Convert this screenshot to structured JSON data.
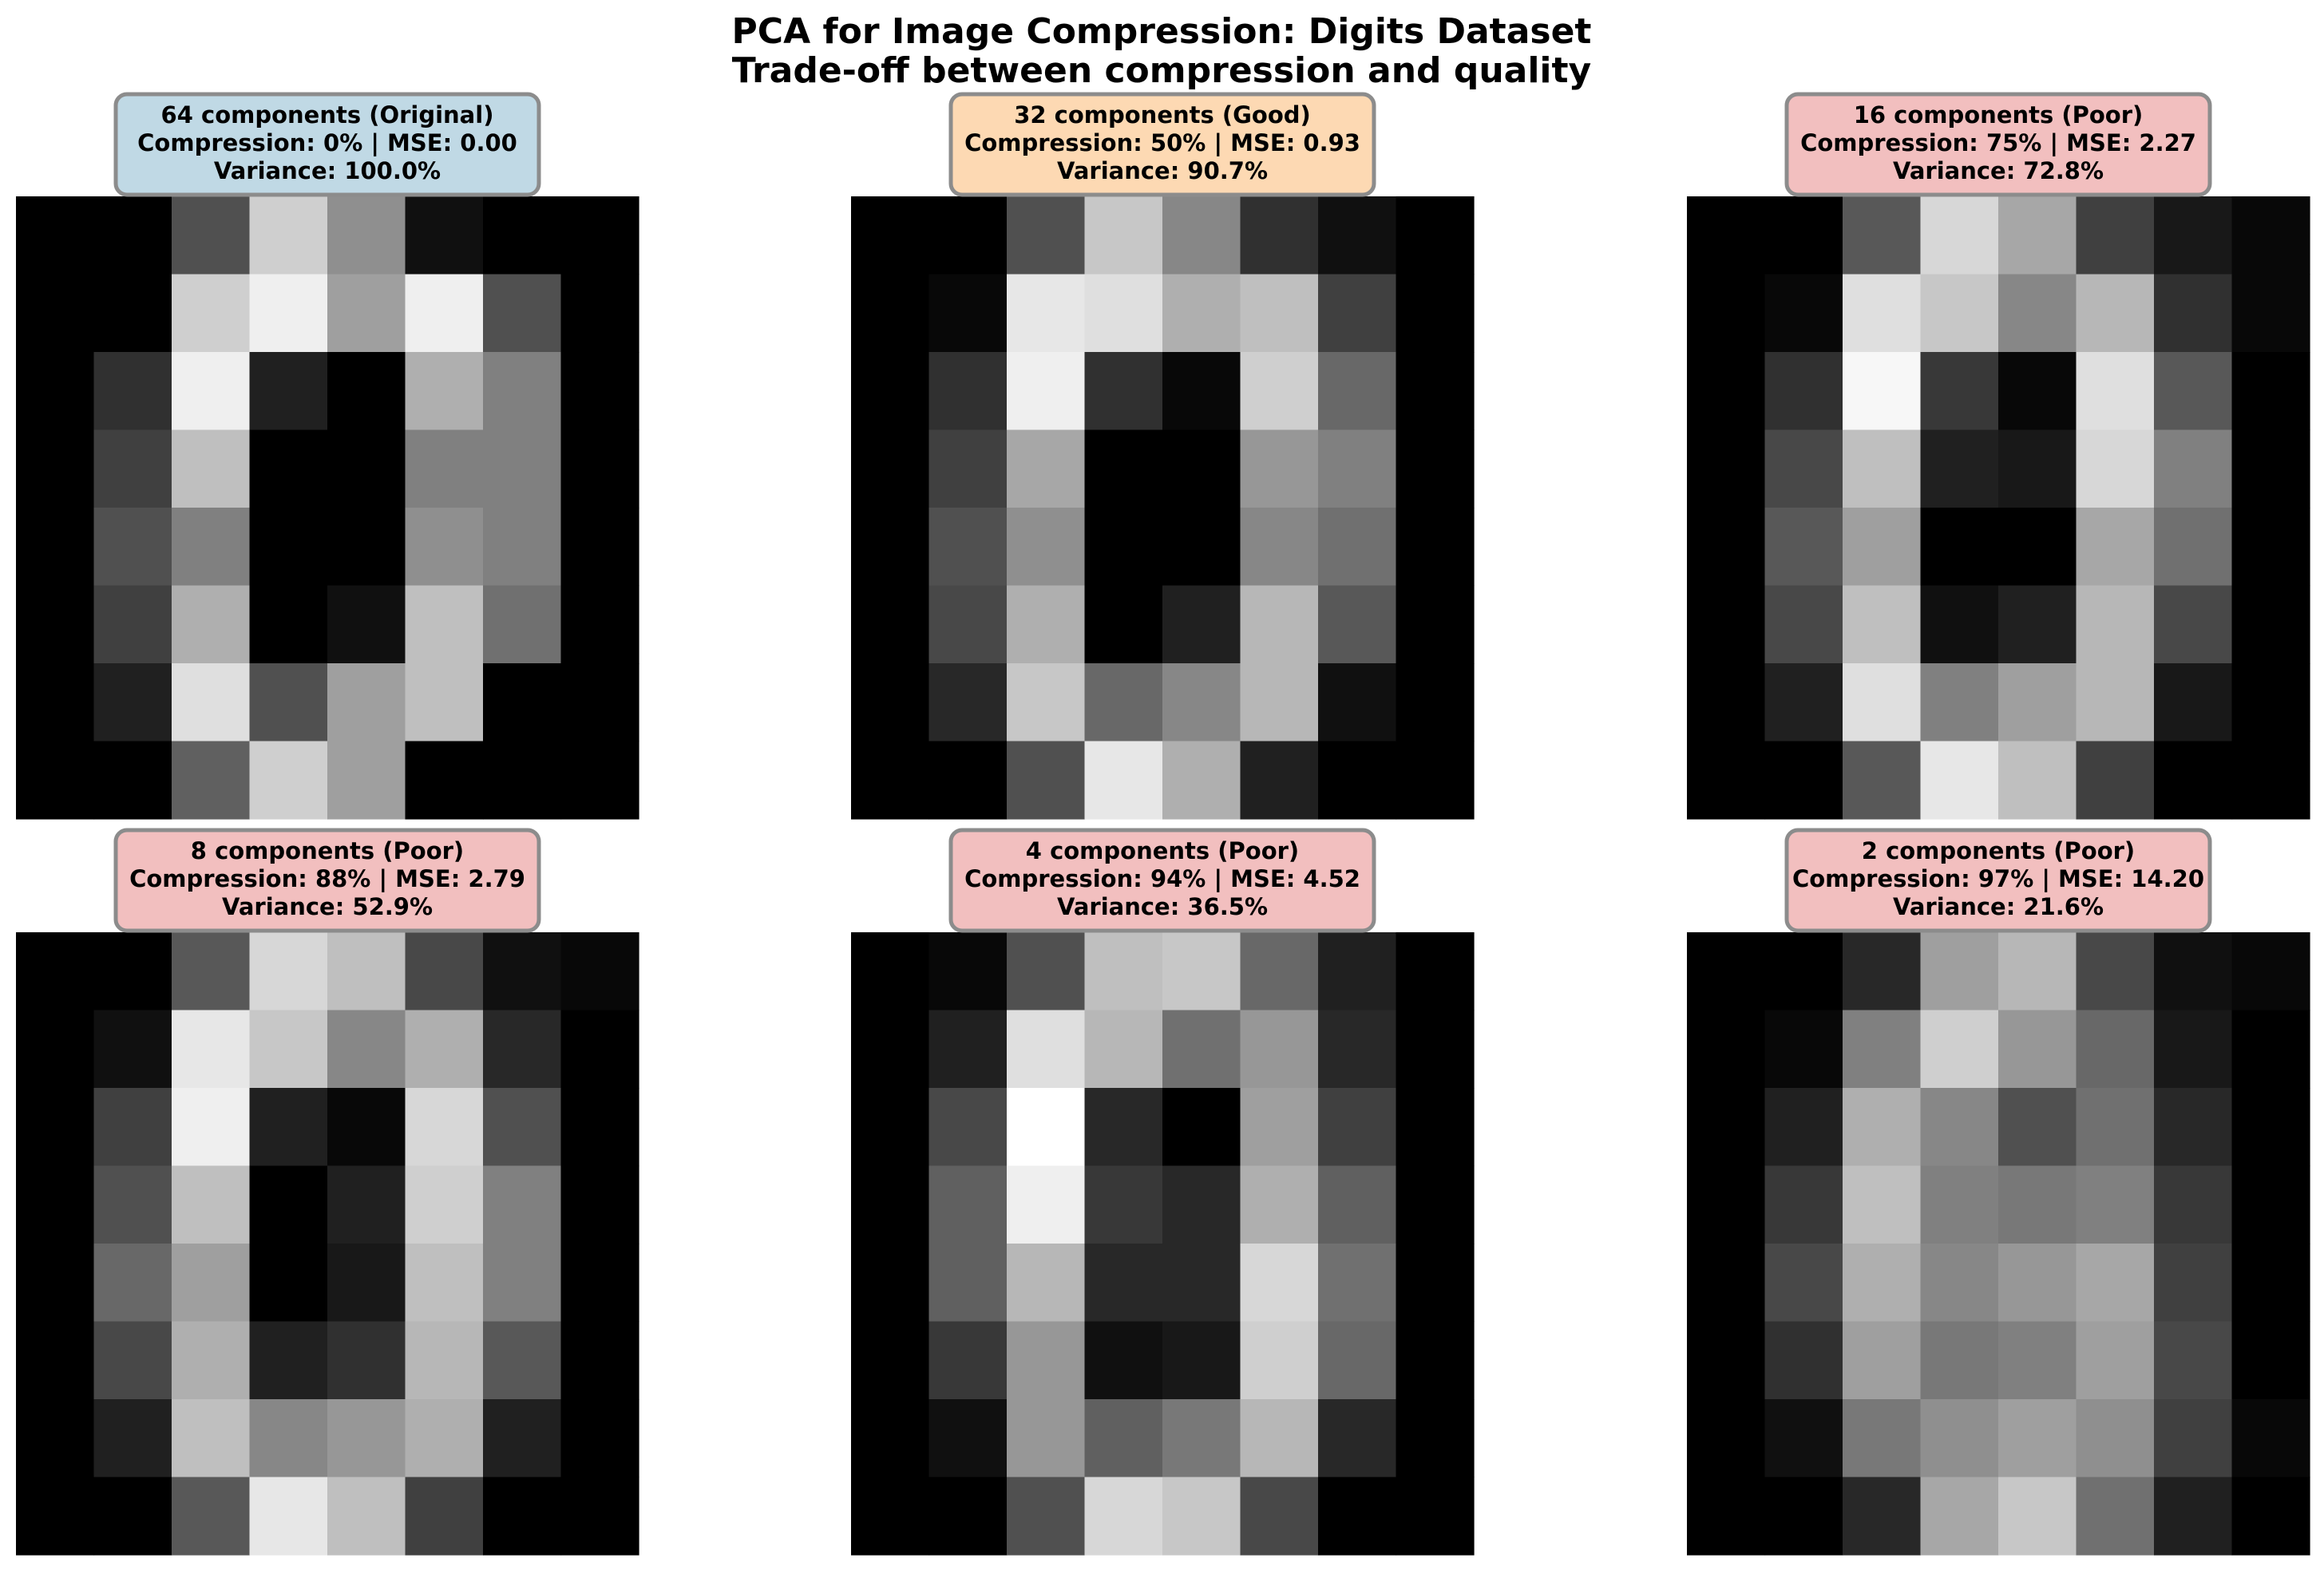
{
  "figure": {
    "title_line1": "PCA for Image Compression: Digits Dataset",
    "title_line2": "Trade-off between compression and quality"
  },
  "chart_data": {
    "type": "heatmap",
    "colormap": "gray",
    "value_range": [
      0,
      16
    ],
    "panels": [
      {
        "label_line1": "64 components (Original)",
        "label_line2": "Compression: 0% | MSE: 0.00",
        "label_line3": "Variance: 100.0%",
        "box_color": "#c0d9e5",
        "components": 64,
        "compression_pct": 0,
        "mse": 0.0,
        "variance_pct": 100.0,
        "pixels": [
          [
            0,
            0,
            5,
            13,
            9,
            1,
            0,
            0
          ],
          [
            0,
            0,
            13,
            15,
            10,
            15,
            5,
            0
          ],
          [
            0,
            3,
            15,
            2,
            0,
            11,
            8,
            0
          ],
          [
            0,
            4,
            12,
            0,
            0,
            8,
            8,
            0
          ],
          [
            0,
            5,
            8,
            0,
            0,
            9,
            8,
            0
          ],
          [
            0,
            4,
            11,
            0,
            1,
            12,
            7,
            0
          ],
          [
            0,
            2,
            14,
            5,
            10,
            12,
            0,
            0
          ],
          [
            0,
            0,
            6,
            13,
            10,
            0,
            0,
            0
          ]
        ]
      },
      {
        "label_line1": "32 components (Good)",
        "label_line2": "Compression: 50% | MSE: 0.93",
        "label_line3": "Variance: 90.7%",
        "box_color": "#fdd9b3",
        "components": 32,
        "compression_pct": 50,
        "mse": 0.93,
        "variance_pct": 90.7,
        "pixels": [
          [
            0,
            0,
            5,
            12.5,
            8.5,
            3,
            1,
            0
          ],
          [
            0,
            0.5,
            14.5,
            14,
            11,
            12,
            4,
            0
          ],
          [
            0,
            3,
            15,
            3,
            0.5,
            13,
            6.5,
            0
          ],
          [
            0,
            4,
            10.5,
            0,
            0,
            9.5,
            8,
            0
          ],
          [
            0,
            5,
            9,
            0,
            0,
            8.5,
            7,
            0
          ],
          [
            0,
            4.5,
            11,
            0,
            2,
            11.5,
            5.5,
            0
          ],
          [
            0,
            2.5,
            12.5,
            6.5,
            8.5,
            11.5,
            1,
            0
          ],
          [
            0,
            0,
            5,
            14.5,
            11,
            2,
            0,
            0
          ]
        ]
      },
      {
        "label_line1": "16 components (Poor)",
        "label_line2": "Compression: 75% | MSE: 2.27",
        "label_line3": "Variance: 72.8%",
        "box_color": "#f2bfbf",
        "components": 16,
        "compression_pct": 75,
        "mse": 2.27,
        "variance_pct": 72.8,
        "pixels": [
          [
            0,
            0,
            5.5,
            13.5,
            10.5,
            4,
            1.5,
            0.5
          ],
          [
            0,
            0.5,
            14,
            12.5,
            8.5,
            11.5,
            3,
            0.5
          ],
          [
            0,
            3,
            15.5,
            3.5,
            0.5,
            14,
            5.5,
            0
          ],
          [
            0,
            4.5,
            12,
            2,
            1.5,
            13.5,
            8,
            0
          ],
          [
            0,
            5.5,
            10,
            0,
            0,
            10.5,
            7,
            0
          ],
          [
            0,
            4.5,
            12,
            1,
            2,
            11.5,
            4.5,
            0
          ],
          [
            0,
            2,
            14,
            8,
            10,
            11.5,
            1.5,
            0
          ],
          [
            0,
            0,
            5.5,
            14.5,
            12,
            4,
            0,
            0
          ]
        ]
      },
      {
        "label_line1": "8 components (Poor)",
        "label_line2": "Compression: 88% | MSE: 2.79",
        "label_line3": "Variance: 52.9%",
        "box_color": "#f2bfbf",
        "components": 8,
        "compression_pct": 88,
        "mse": 2.79,
        "variance_pct": 52.9,
        "pixels": [
          [
            0,
            0,
            5.5,
            13.5,
            12,
            4.5,
            1,
            0.5
          ],
          [
            0,
            1,
            14.5,
            12.5,
            8.5,
            11,
            2.5,
            0
          ],
          [
            0,
            4,
            15,
            2,
            0.5,
            13.5,
            5,
            0
          ],
          [
            0,
            5,
            12,
            0,
            2,
            13,
            8,
            0
          ],
          [
            0,
            6.5,
            10,
            0,
            1.5,
            12,
            8,
            0
          ],
          [
            0,
            4.5,
            11,
            2,
            3,
            11.5,
            5.5,
            0
          ],
          [
            0,
            2,
            12,
            8.5,
            9.5,
            11,
            2,
            0
          ],
          [
            0,
            0,
            5.5,
            14.5,
            12,
            4,
            0,
            0
          ]
        ]
      },
      {
        "label_line1": "4 components (Poor)",
        "label_line2": "Compression: 94% | MSE: 4.52",
        "label_line3": "Variance: 36.5%",
        "box_color": "#f2bfbf",
        "components": 4,
        "compression_pct": 94,
        "mse": 4.52,
        "variance_pct": 36.5,
        "pixels": [
          [
            0,
            0.5,
            5,
            12,
            12.5,
            6.5,
            2,
            0
          ],
          [
            0,
            2,
            14,
            11.5,
            7,
            9.5,
            2.5,
            0
          ],
          [
            0,
            4.5,
            16,
            2.5,
            0,
            10,
            4,
            0
          ],
          [
            0,
            6,
            15,
            3.5,
            2.5,
            11,
            6,
            0
          ],
          [
            0,
            6,
            11.5,
            2.5,
            2.5,
            13.5,
            7,
            0
          ],
          [
            0,
            3.5,
            9.5,
            1,
            1.5,
            13,
            6.5,
            0
          ],
          [
            0,
            1,
            9.5,
            6,
            7.5,
            11.5,
            2.5,
            0
          ],
          [
            0,
            0,
            5,
            13.5,
            12.5,
            4.5,
            0,
            0
          ]
        ]
      },
      {
        "label_line1": "2 components (Poor)",
        "label_line2": "Compression: 97% | MSE: 14.20",
        "label_line3": "Variance: 21.6%",
        "box_color": "#f2bfbf",
        "components": 2,
        "compression_pct": 97,
        "mse": 14.2,
        "variance_pct": 21.6,
        "pixels": [
          [
            0,
            0,
            2.5,
            10,
            11.5,
            4.5,
            1,
            0.5
          ],
          [
            0,
            0.5,
            8,
            13,
            9.5,
            6.5,
            1.5,
            0
          ],
          [
            0,
            2,
            11,
            8.5,
            5,
            7,
            2.5,
            0
          ],
          [
            0,
            3.5,
            12,
            8,
            7.5,
            8,
            3.5,
            0
          ],
          [
            0,
            4.5,
            11,
            8.5,
            9.5,
            10.5,
            4,
            0
          ],
          [
            0,
            3,
            10,
            7.5,
            8,
            10,
            4.5,
            0
          ],
          [
            0,
            1,
            7.5,
            9,
            10,
            9,
            4,
            0.5
          ],
          [
            0,
            0,
            2.5,
            10.5,
            12.5,
            7,
            2,
            0
          ]
        ]
      }
    ]
  }
}
